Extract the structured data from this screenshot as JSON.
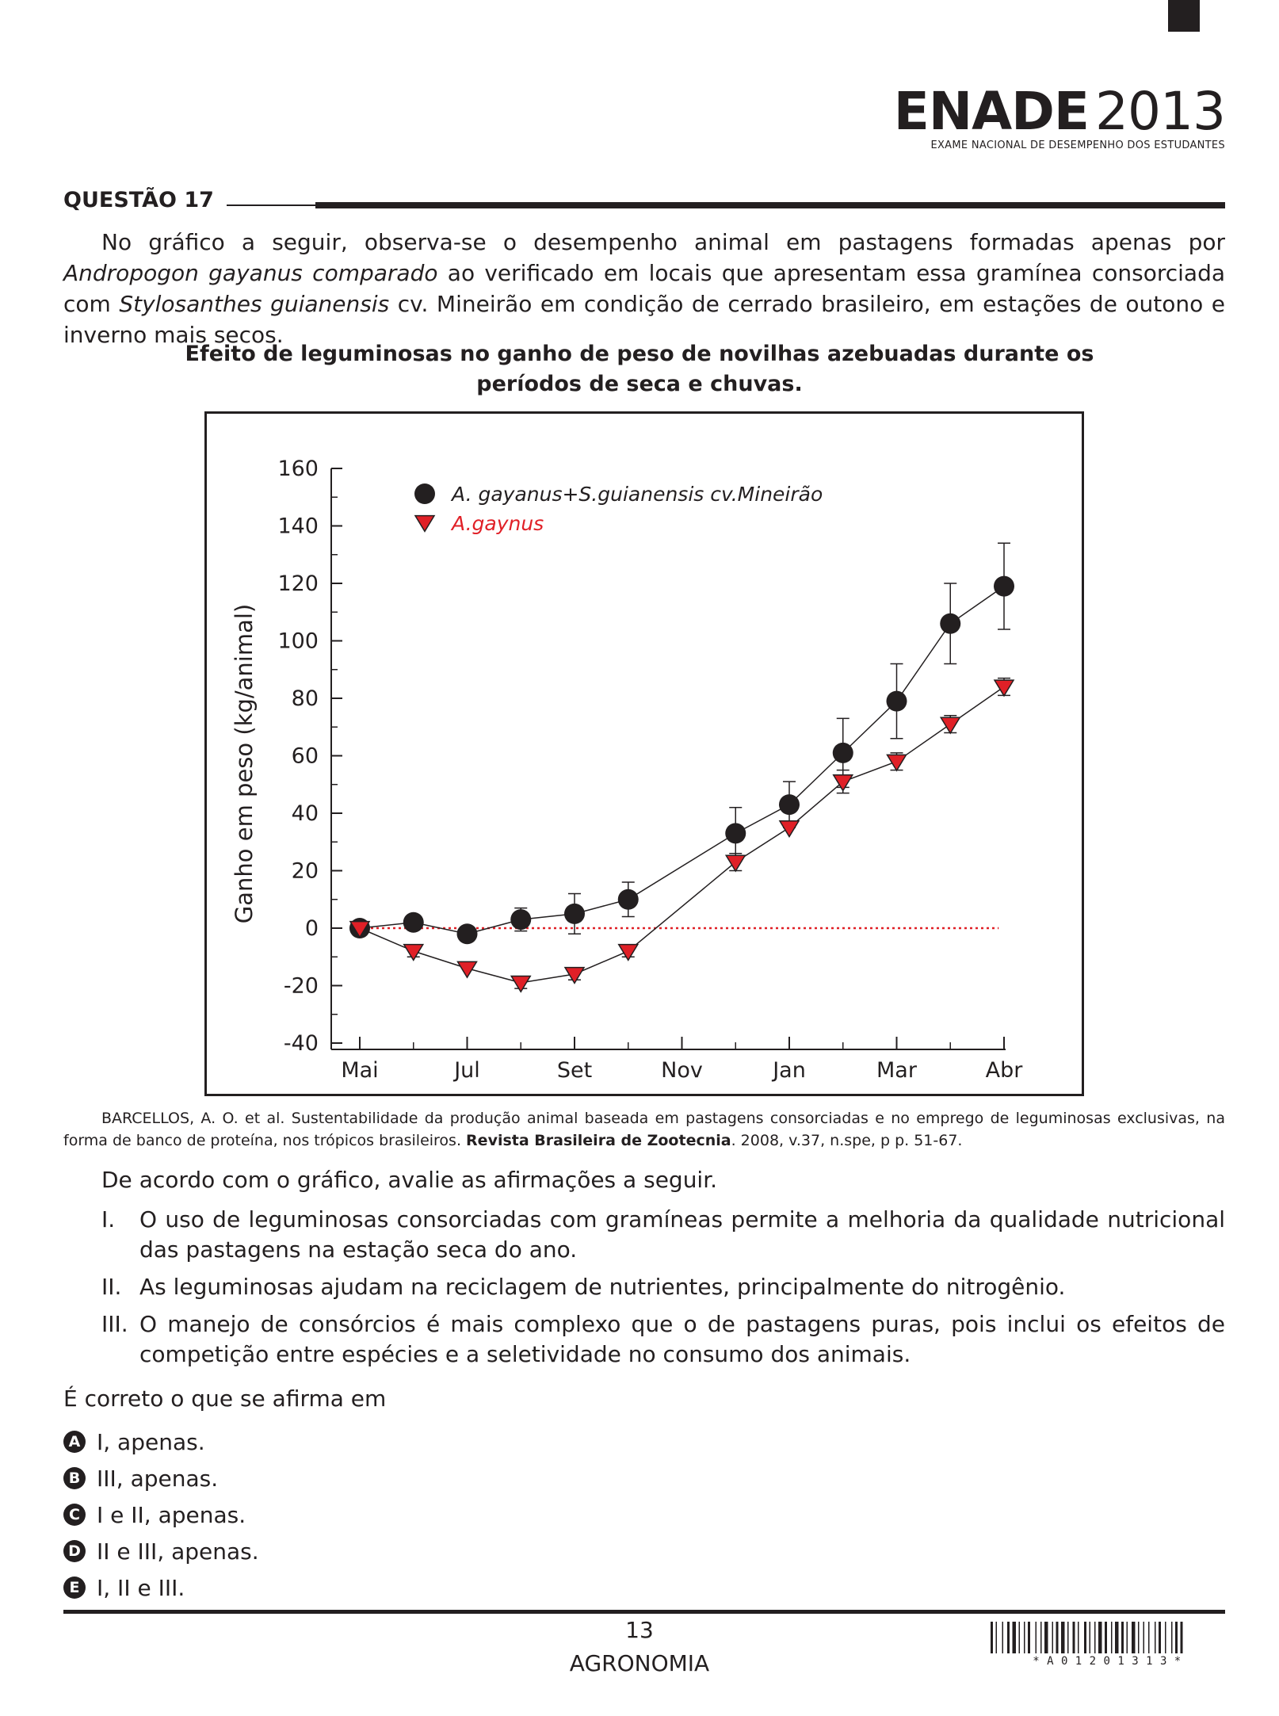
{
  "header": {
    "logo_word": "ENADE",
    "logo_year": "2013",
    "logo_subtitle": "EXAME NACIONAL DE DESEMPENHO DOS ESTUDANTES"
  },
  "question": {
    "title": "QUESTÃO 17",
    "intro_1": "No gráfico a seguir, observa-se o desempenho animal em pastagens formadas apenas por ",
    "intro_2": "Andropogon gayanus comparado",
    "intro_3": " ao verificado em locais que apresentam essa gramínea consorciada com ",
    "intro_4": "Stylosanthes guianensis",
    "intro_5": " cv. Mineirão em condição de cerrado brasileiro, em estações de outono e inverno mais secos."
  },
  "chart_data": {
    "type": "line",
    "title": "Efeito de leguminosas no ganho de peso de novilhas azebuadas durante os períodos de seca e chuvas.",
    "ylabel": "Ganho em peso (kg/animal)",
    "xlabel": "",
    "ylim": [
      -40,
      160
    ],
    "yticks": [
      "160",
      "140",
      "120",
      "100",
      "80",
      "60",
      "40",
      "20",
      "0",
      "-20",
      "-40"
    ],
    "x_tick_labels": [
      "Mai",
      "Jul",
      "Set",
      "Nov",
      "Jan",
      "Mar",
      "Abr"
    ],
    "x_tick_positions": [
      0,
      2,
      4,
      6,
      8,
      10,
      12
    ],
    "series": [
      {
        "name": "A. gayanus+S.guianensis cv.Mineirão",
        "color": "#231f20",
        "marker": "circle",
        "x": [
          0,
          1,
          2,
          3,
          4,
          5,
          7,
          8,
          9,
          10,
          11,
          12
        ],
        "values": [
          0,
          2,
          -2,
          3,
          5,
          10,
          33,
          43,
          61,
          79,
          106,
          119
        ],
        "errors": [
          0,
          0,
          0,
          4,
          7,
          6,
          9,
          8,
          12,
          13,
          14,
          15
        ]
      },
      {
        "name": "A.gaynus",
        "color": "#e02027",
        "marker": "triangle-down",
        "x": [
          0,
          1,
          2,
          3,
          4,
          5,
          7,
          8,
          9,
          10,
          11,
          12
        ],
        "values": [
          0,
          -8,
          -14,
          -19,
          -16,
          -8,
          23,
          35,
          51,
          58,
          71,
          84
        ],
        "errors": [
          0,
          2,
          0,
          2,
          2,
          2,
          3,
          0,
          4,
          3,
          3,
          3
        ]
      }
    ],
    "reference_line": {
      "y": 0,
      "color": "#e02027",
      "style": "dotted"
    },
    "legend_placement": "top-left"
  },
  "source": {
    "text_1": "BARCELLOS, A. O. et al. Sustentabilidade da produção animal baseada em pastagens consorciadas e no emprego de leguminosas exclusivas, na forma de banco de proteína, nos trópicos brasileiros. ",
    "journal": "Revista Brasileira de Zootecnia",
    "text_2": ". 2008, v.37, n.spe, p p. 51-67."
  },
  "lead": "De acordo com o gráfico, avalie as afirmações a seguir.",
  "statements": [
    {
      "num": "I.",
      "text": "O uso de leguminosas consorciadas com gramíneas permite a melhoria da qualidade nutricional das pastagens na estação seca do ano."
    },
    {
      "num": "II.",
      "text": "As leguminosas ajudam na reciclagem de nutrientes, principalmente do nitrogênio."
    },
    {
      "num": "III.",
      "text": "O manejo de consórcios é mais complexo que o de pastagens puras, pois inclui os efeitos de competição entre espécies e a seletividade no consumo dos animais."
    }
  ],
  "prompt": "É correto o que se afirma em",
  "options": [
    {
      "letter": "A",
      "text": "I, apenas."
    },
    {
      "letter": "B",
      "text": "III, apenas."
    },
    {
      "letter": "C",
      "text": "I e II, apenas."
    },
    {
      "letter": "D",
      "text": "II e III, apenas."
    },
    {
      "letter": "E",
      "text": "I, II e III."
    }
  ],
  "footer": {
    "page_number": "13",
    "course": "AGRONOMIA",
    "barcode_text": "* A 0 1 2 0 1 3 1 3 *"
  }
}
